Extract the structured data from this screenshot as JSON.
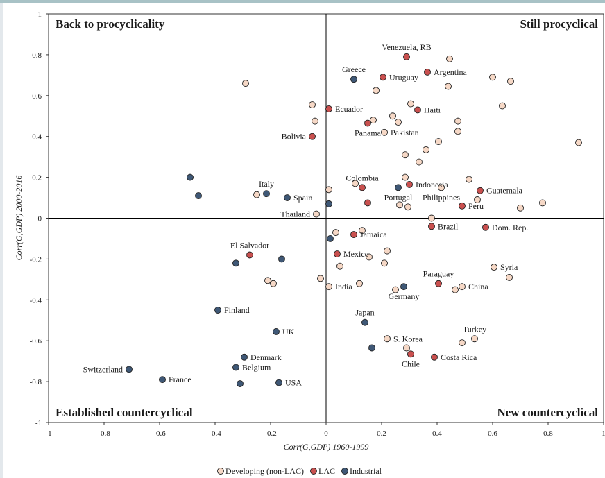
{
  "chart_data": {
    "type": "scatter",
    "xlabel": "Corr(G,GDP) 1960-1999",
    "ylabel": "Corr(G,GDP) 2000-2016",
    "xlim": [
      -1,
      1
    ],
    "ylim": [
      -1,
      1
    ],
    "xticks": [
      -1,
      -0.8,
      -0.6,
      -0.4,
      -0.2,
      0,
      0.2,
      0.4,
      0.6,
      0.8,
      1
    ],
    "yticks": [
      -1,
      -0.8,
      -0.6,
      -0.4,
      -0.2,
      0,
      0.2,
      0.4,
      0.6,
      0.8,
      1
    ],
    "quadrant_labels": [
      "Back to procyclicality",
      "Still procyclical",
      "Established countercyclical",
      "New countercyclical"
    ],
    "series": [
      {
        "name": "Developing (non-LAC)",
        "color": "#f6d8c6",
        "x": [
          -0.29,
          0.445,
          0.6,
          0.665,
          0.44,
          0.18,
          -0.05,
          0.635,
          0.305,
          -0.04,
          0.17,
          0.24,
          0.26,
          0.475,
          0.475,
          0.21,
          0.91,
          0.405,
          0.36,
          0.285,
          0.335,
          0.285,
          0.515,
          0.105,
          0.01,
          0.415,
          0.545,
          0.78,
          0.7,
          0.265,
          0.295,
          -0.25,
          -0.035,
          0.38,
          0.035,
          0.13,
          0.22,
          0.155,
          0.05,
          0.21,
          -0.02,
          -0.21,
          -0.19,
          0.01,
          0.12,
          0.25,
          0.49,
          0.465,
          0.605,
          0.66,
          0.535,
          0.49,
          0.22,
          0.29
        ],
        "values": [
          0.66,
          0.78,
          0.69,
          0.67,
          0.645,
          0.625,
          0.555,
          0.55,
          0.56,
          0.475,
          0.48,
          0.5,
          0.47,
          0.475,
          0.425,
          0.42,
          0.37,
          0.375,
          0.335,
          0.31,
          0.275,
          0.2,
          0.19,
          0.17,
          0.14,
          0.15,
          0.09,
          0.075,
          0.05,
          0.065,
          0.055,
          0.115,
          0.02,
          0.0,
          -0.07,
          -0.06,
          -0.16,
          -0.19,
          -0.235,
          -0.22,
          -0.295,
          -0.305,
          -0.32,
          -0.335,
          -0.32,
          -0.35,
          -0.335,
          -0.35,
          -0.24,
          -0.29,
          -0.59,
          -0.61,
          -0.59,
          -0.635
        ],
        "labels": [
          null,
          null,
          null,
          null,
          null,
          null,
          null,
          null,
          null,
          null,
          null,
          null,
          null,
          null,
          null,
          "Pakistan",
          null,
          null,
          null,
          null,
          null,
          null,
          null,
          null,
          null,
          "Philippines",
          null,
          null,
          null,
          null,
          null,
          null,
          "Thailand",
          null,
          null,
          null,
          null,
          null,
          null,
          null,
          null,
          null,
          null,
          "India",
          null,
          null,
          "China",
          null,
          "Syria",
          null,
          "Turkey",
          null,
          "S. Korea",
          null
        ]
      },
      {
        "name": "LAC",
        "color": "#c9504f",
        "x": [
          0.29,
          0.365,
          0.205,
          0.01,
          0.33,
          0.15,
          -0.05,
          0.13,
          0.3,
          0.15,
          0.555,
          0.49,
          0.38,
          0.575,
          0.1,
          0.04,
          -0.275,
          0.405,
          0.305,
          0.39
        ],
        "values": [
          0.79,
          0.715,
          0.69,
          0.535,
          0.53,
          0.465,
          0.4,
          0.15,
          0.165,
          0.075,
          0.135,
          0.06,
          -0.04,
          -0.045,
          -0.08,
          -0.175,
          -0.18,
          -0.32,
          -0.665,
          -0.68
        ],
        "labels": [
          "Venezuela, RB",
          "Argentina",
          "Uruguay",
          "Ecuador",
          "Haiti",
          "Panama",
          "Bolivia",
          "Colombia",
          "Indonesia",
          null,
          "Guatemala",
          "Peru",
          "Brazil",
          "Dom. Rep.",
          "Jamaica",
          "Mexico",
          "El Salvador",
          "Paraguay",
          "Chile",
          "Costa Rica"
        ]
      },
      {
        "name": "Industrial",
        "color": "#3f5876",
        "x": [
          0.1,
          -0.49,
          -0.46,
          -0.215,
          -0.14,
          0.01,
          0.26,
          0.015,
          -0.325,
          -0.16,
          0.28,
          -0.39,
          0.14,
          -0.18,
          0.165,
          -0.295,
          -0.325,
          -0.71,
          -0.59,
          -0.31,
          -0.17
        ],
        "values": [
          0.68,
          0.2,
          0.11,
          0.12,
          0.1,
          0.07,
          0.15,
          -0.1,
          -0.22,
          -0.2,
          -0.335,
          -0.45,
          -0.51,
          -0.555,
          -0.635,
          -0.68,
          -0.73,
          -0.74,
          -0.79,
          -0.81,
          -0.805
        ],
        "labels": [
          "Greece",
          null,
          null,
          "Italy",
          "Spain",
          null,
          "Portugal",
          null,
          null,
          null,
          "Germany",
          "Finland",
          "Japan",
          "UK",
          null,
          "Denmark",
          "Belgium",
          "Switzerland",
          "France",
          null,
          "USA"
        ]
      }
    ]
  }
}
